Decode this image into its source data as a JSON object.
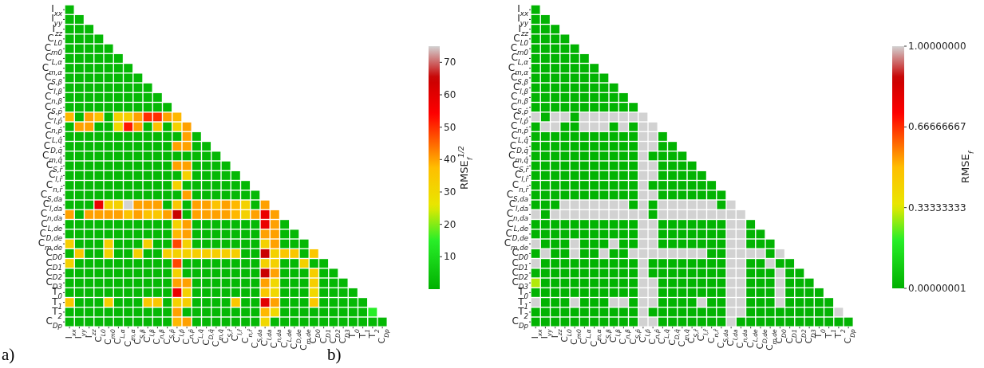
{
  "chart_data": [
    {
      "type": "heatmap",
      "clabel": "RMSE$_{f}$$^{1/2}$",
      "annotations": [
        "a)"
      ],
      "categories": [
        "I$_{xx}$",
        "I$_{yy}$",
        "I$_{zz}$",
        "C$_{L0}$",
        "C$_{m0}$",
        "C$_{L,α}$",
        "C$_{m,α}$",
        "C$_{S,β}$",
        "C$_{l,β}$",
        "C$_{n,β}$",
        "C$_{S,p̂}$",
        "C$_{l,p̂}$",
        "C$_{n,p̂}$",
        "C$_{L,q̂}$",
        "C$_{D,q̂}$",
        "C$_{m,q̂}$",
        "C$_{S,r̂}$",
        "C$_{l,r̂}$",
        "C$_{n,r̂}$",
        "C$_{S,da}$",
        "C$_{l,da}$",
        "C$_{n,da}$",
        "C$_{L,de}$",
        "C$_{D,de}$",
        "C$_{m,de}$",
        "C$_{D0}$",
        "C$_{D1}$",
        "C$_{D2}$",
        "C$_{D3}$",
        "T$_{0}$",
        "T$_{1}$",
        "T$_{2}$",
        "C$_{Dp}$"
      ],
      "y_categories": [
        "I$_{xx}$",
        "I$_{yy}$",
        "I$_{zz}$",
        "C$_{L0}$",
        "C$_{m0}$",
        "C$_{L,α}$",
        "C$_{m,α}$",
        "C$_{S,β}$",
        "C$_{l,β}$",
        "C$_{n,β}$",
        "C$_{S,p̂}$",
        "C$_{l,p̂}$",
        "C$_{n,p̂}$",
        "C$_{L,q̂}$",
        "C$_{D,q̂}$",
        "C$_{m,q̂}$",
        "C$_{S,r̂}$",
        "C$_{l,r̂}$",
        "C$_{n,r̂}$",
        "C$_{S,da}$",
        "C$_{l,da}$",
        "C$_{n,da}$",
        "C$_{L,de}$",
        "C$_{D,de}$",
        "C$_{m,de}$",
        "C$_{D0}$",
        "C$_{D1}$",
        "C$_{D2}$",
        "C$_{D3}$",
        "T$_{0}$",
        "T$_{1}$",
        "T$_{2}$",
        "C$_{Dp}$"
      ],
      "clim": [
        0,
        75
      ],
      "cticks": [
        10,
        20,
        30,
        40,
        50,
        60,
        70
      ],
      "cells": [
        [
          2,
          null,
          null,
          null,
          null,
          null,
          null,
          null,
          null,
          null,
          null,
          null,
          null,
          null,
          null,
          null,
          null,
          null,
          null,
          null,
          null,
          null,
          null,
          null,
          null,
          null,
          null,
          null,
          null,
          null,
          null,
          null,
          null
        ],
        [
          2,
          2,
          null,
          null,
          null,
          null,
          null,
          null,
          null,
          null,
          null,
          null,
          null,
          null,
          null,
          null,
          null,
          null,
          null,
          null,
          null,
          null,
          null,
          null,
          null,
          null,
          null,
          null,
          null,
          null,
          null,
          null,
          null
        ],
        [
          2,
          2,
          2,
          null,
          null,
          null,
          null,
          null,
          null,
          null,
          null,
          null,
          null,
          null,
          null,
          null,
          null,
          null,
          null,
          null,
          null,
          null,
          null,
          null,
          null,
          null,
          null,
          null,
          null,
          null,
          null,
          null,
          null
        ],
        [
          2,
          2,
          2,
          2,
          null,
          null,
          null,
          null,
          null,
          null,
          null,
          null,
          null,
          null,
          null,
          null,
          null,
          null,
          null,
          null,
          null,
          null,
          null,
          null,
          null,
          null,
          null,
          null,
          null,
          null,
          null,
          null,
          null
        ],
        [
          2,
          2,
          2,
          2,
          2,
          null,
          null,
          null,
          null,
          null,
          null,
          null,
          null,
          null,
          null,
          null,
          null,
          null,
          null,
          null,
          null,
          null,
          null,
          null,
          null,
          null,
          null,
          null,
          null,
          null,
          null,
          null,
          null
        ],
        [
          2,
          2,
          2,
          2,
          2,
          2,
          null,
          null,
          null,
          null,
          null,
          null,
          null,
          null,
          null,
          null,
          null,
          null,
          null,
          null,
          null,
          null,
          null,
          null,
          null,
          null,
          null,
          null,
          null,
          null,
          null,
          null,
          null
        ],
        [
          2,
          2,
          2,
          2,
          2,
          2,
          2,
          null,
          null,
          null,
          null,
          null,
          null,
          null,
          null,
          null,
          null,
          null,
          null,
          null,
          null,
          null,
          null,
          null,
          null,
          null,
          null,
          null,
          null,
          null,
          null,
          null,
          null
        ],
        [
          2,
          2,
          2,
          2,
          2,
          2,
          2,
          2,
          null,
          null,
          null,
          null,
          null,
          null,
          null,
          null,
          null,
          null,
          null,
          null,
          null,
          null,
          null,
          null,
          null,
          null,
          null,
          null,
          null,
          null,
          null,
          null,
          null
        ],
        [
          2,
          2,
          2,
          2,
          2,
          2,
          2,
          2,
          2,
          null,
          null,
          null,
          null,
          null,
          null,
          null,
          null,
          null,
          null,
          null,
          null,
          null,
          null,
          null,
          null,
          null,
          null,
          null,
          null,
          null,
          null,
          null,
          null
        ],
        [
          2,
          2,
          2,
          2,
          2,
          2,
          2,
          2,
          2,
          2,
          null,
          null,
          null,
          null,
          null,
          null,
          null,
          null,
          null,
          null,
          null,
          null,
          null,
          null,
          null,
          null,
          null,
          null,
          null,
          null,
          null,
          null,
          null
        ],
        [
          2,
          2,
          2,
          2,
          2,
          2,
          2,
          2,
          2,
          2,
          2,
          null,
          null,
          null,
          null,
          null,
          null,
          null,
          null,
          null,
          null,
          null,
          null,
          null,
          null,
          null,
          null,
          null,
          null,
          null,
          null,
          null,
          null
        ],
        [
          38,
          2,
          40,
          37,
          2,
          32,
          33,
          40,
          50,
          50,
          40,
          38,
          null,
          null,
          null,
          null,
          null,
          null,
          null,
          null,
          null,
          null,
          null,
          null,
          null,
          null,
          null,
          null,
          null,
          null,
          null,
          null,
          null
        ],
        [
          2,
          40,
          40,
          2,
          2,
          30,
          52,
          40,
          2,
          36,
          2,
          32,
          40,
          null,
          null,
          null,
          null,
          null,
          null,
          null,
          null,
          null,
          null,
          null,
          null,
          null,
          null,
          null,
          null,
          null,
          null,
          null,
          null
        ],
        [
          2,
          2,
          2,
          2,
          2,
          2,
          2,
          2,
          2,
          2,
          2,
          2,
          40,
          2,
          null,
          null,
          null,
          null,
          null,
          null,
          null,
          null,
          null,
          null,
          null,
          null,
          null,
          null,
          null,
          null,
          null,
          null,
          null
        ],
        [
          2,
          2,
          2,
          2,
          2,
          2,
          2,
          2,
          2,
          2,
          2,
          40,
          40,
          2,
          2,
          null,
          null,
          null,
          null,
          null,
          null,
          null,
          null,
          null,
          null,
          null,
          null,
          null,
          null,
          null,
          null,
          null,
          null
        ],
        [
          2,
          2,
          2,
          2,
          2,
          2,
          2,
          2,
          2,
          2,
          2,
          2,
          2,
          2,
          2,
          2,
          null,
          null,
          null,
          null,
          null,
          null,
          null,
          null,
          null,
          null,
          null,
          null,
          null,
          null,
          null,
          null,
          null
        ],
        [
          2,
          2,
          2,
          2,
          2,
          2,
          2,
          2,
          2,
          2,
          2,
          40,
          40,
          2,
          2,
          2,
          2,
          null,
          null,
          null,
          null,
          null,
          null,
          null,
          null,
          null,
          null,
          null,
          null,
          null,
          null,
          null,
          null
        ],
        [
          2,
          2,
          2,
          2,
          2,
          2,
          2,
          2,
          2,
          2,
          2,
          2,
          32,
          2,
          2,
          2,
          2,
          2,
          null,
          null,
          null,
          null,
          null,
          null,
          null,
          null,
          null,
          null,
          null,
          null,
          null,
          null,
          null
        ],
        [
          2,
          2,
          2,
          2,
          2,
          2,
          2,
          2,
          2,
          2,
          2,
          32,
          2,
          2,
          2,
          2,
          2,
          2,
          2,
          null,
          null,
          null,
          null,
          null,
          null,
          null,
          null,
          null,
          null,
          null,
          null,
          null,
          null
        ],
        [
          2,
          2,
          2,
          2,
          2,
          2,
          2,
          2,
          2,
          2,
          2,
          2,
          40,
          2,
          2,
          2,
          2,
          2,
          2,
          2,
          null,
          null,
          null,
          null,
          null,
          null,
          null,
          null,
          null,
          null,
          null,
          null,
          null
        ],
        [
          2,
          2,
          2,
          58,
          32,
          32,
          75,
          40,
          40,
          40,
          2,
          35,
          2,
          40,
          40,
          36,
          40,
          38,
          32,
          2,
          40,
          null,
          null,
          null,
          null,
          null,
          null,
          null,
          null,
          null,
          null,
          null,
          null
        ],
        [
          40,
          2,
          40,
          40,
          40,
          40,
          36,
          40,
          36,
          35,
          40,
          65,
          2,
          40,
          40,
          40,
          40,
          38,
          32,
          40,
          58,
          40,
          null,
          null,
          null,
          null,
          null,
          null,
          null,
          null,
          null,
          null,
          null
        ],
        [
          2,
          2,
          2,
          2,
          2,
          2,
          2,
          2,
          2,
          2,
          2,
          32,
          40,
          2,
          2,
          2,
          2,
          2,
          2,
          2,
          58,
          40,
          2,
          null,
          null,
          null,
          null,
          null,
          null,
          null,
          null,
          null,
          null
        ],
        [
          2,
          2,
          2,
          2,
          2,
          2,
          2,
          2,
          2,
          2,
          2,
          38,
          40,
          2,
          2,
          2,
          2,
          2,
          2,
          2,
          40,
          40,
          2,
          2,
          null,
          null,
          null,
          null,
          null,
          null,
          null,
          null,
          null
        ],
        [
          33,
          2,
          2,
          2,
          33,
          2,
          2,
          2,
          33,
          2,
          2,
          48,
          32,
          2,
          2,
          2,
          2,
          2,
          2,
          2,
          32,
          40,
          2,
          2,
          2,
          null,
          null,
          null,
          null,
          null,
          null,
          null,
          null
        ],
        [
          2,
          35,
          2,
          2,
          32,
          2,
          2,
          33,
          2,
          2,
          33,
          32,
          32,
          33,
          33,
          33,
          33,
          33,
          2,
          2,
          65,
          32,
          35,
          35,
          2,
          35,
          null,
          null,
          null,
          null,
          null,
          null,
          null
        ],
        [
          32,
          2,
          2,
          2,
          2,
          2,
          2,
          2,
          2,
          2,
          2,
          48,
          2,
          2,
          2,
          2,
          2,
          2,
          2,
          2,
          32,
          32,
          2,
          2,
          32,
          2,
          2,
          null,
          null,
          null,
          null,
          null,
          null
        ],
        [
          2,
          2,
          2,
          2,
          2,
          2,
          2,
          2,
          2,
          2,
          2,
          32,
          2,
          2,
          2,
          2,
          2,
          2,
          2,
          2,
          65,
          40,
          2,
          2,
          2,
          33,
          2,
          2,
          null,
          null,
          null,
          null,
          null
        ],
        [
          2,
          2,
          2,
          2,
          2,
          2,
          2,
          2,
          2,
          2,
          2,
          40,
          40,
          2,
          2,
          2,
          2,
          2,
          2,
          2,
          40,
          30,
          2,
          2,
          2,
          33,
          2,
          2,
          2,
          null,
          null,
          null,
          null
        ],
        [
          2,
          2,
          2,
          2,
          2,
          2,
          2,
          2,
          2,
          2,
          2,
          58,
          32,
          2,
          2,
          2,
          2,
          2,
          2,
          2,
          35,
          30,
          2,
          2,
          2,
          30,
          2,
          2,
          2,
          2,
          null,
          null,
          null
        ],
        [
          35,
          2,
          2,
          2,
          33,
          2,
          2,
          2,
          35,
          35,
          2,
          32,
          33,
          2,
          2,
          2,
          2,
          35,
          2,
          2,
          60,
          40,
          2,
          2,
          2,
          35,
          2,
          2,
          2,
          2,
          2,
          null,
          null
        ],
        [
          2,
          2,
          2,
          2,
          2,
          2,
          2,
          2,
          2,
          2,
          2,
          40,
          2,
          2,
          2,
          2,
          2,
          2,
          2,
          2,
          38,
          30,
          2,
          2,
          2,
          2,
          2,
          2,
          2,
          2,
          2,
          15,
          null
        ],
        [
          2,
          2,
          2,
          2,
          2,
          2,
          2,
          2,
          2,
          2,
          2,
          38,
          40,
          2,
          2,
          2,
          2,
          2,
          2,
          2,
          30,
          2,
          2,
          2,
          2,
          2,
          2,
          2,
          2,
          2,
          2,
          2,
          2
        ]
      ]
    },
    {
      "type": "heatmap",
      "clabel": "RMSE$_{f}$",
      "annotations": [
        "b)"
      ],
      "categories": [
        "I$_{xx}$",
        "I$_{yy}$",
        "I$_{zz}$",
        "C$_{L0}$",
        "C$_{m0}$",
        "C$_{L,α}$",
        "C$_{m,α}$",
        "C$_{S,β}$",
        "C$_{l,β}$",
        "C$_{n,β}$",
        "C$_{S,p̂}$",
        "C$_{l,p̂}$",
        "C$_{n,p̂}$",
        "C$_{L,q̂}$",
        "C$_{D,q̂}$",
        "C$_{m,q̂}$",
        "C$_{S,r̂}$",
        "C$_{l,r̂}$",
        "C$_{n,r̂}$",
        "C$_{S,da}$",
        "C$_{l,da}$",
        "C$_{n,da}$",
        "C$_{L,de}$",
        "C$_{D,de}$",
        "C$_{m,de}$",
        "C$_{D0}$",
        "C$_{D1}$",
        "C$_{D2}$",
        "C$_{D3}$",
        "T$_{0}$",
        "T$_{1}$",
        "T$_{2}$",
        "C$_{Dp}$"
      ],
      "y_categories": [
        "I$_{xx}$",
        "I$_{yy}$",
        "I$_{zz}$",
        "C$_{L0}$",
        "C$_{m0}$",
        "C$_{L,α}$",
        "C$_{m,α}$",
        "C$_{S,β}$",
        "C$_{l,β}$",
        "C$_{n,β}$",
        "C$_{S,p̂}$",
        "C$_{l,p̂}$",
        "C$_{n,p̂}$",
        "C$_{L,q̂}$",
        "C$_{D,q̂}$",
        "C$_{m,q̂}$",
        "C$_{S,r̂}$",
        "C$_{l,r̂}$",
        "C$_{n,r̂}$",
        "C$_{S,da}$",
        "C$_{l,da}$",
        "C$_{n,da}$",
        "C$_{L,de}$",
        "C$_{D,de}$",
        "C$_{m,de}$",
        "C$_{D0}$",
        "C$_{D1}$",
        "C$_{D2}$",
        "C$_{D3}$",
        "T$_{0}$",
        "T$_{1}$",
        "T$_{2}$",
        "C$_{Dp}$"
      ],
      "clim": [
        1e-08,
        1
      ],
      "cticks": [
        {
          "value": 1e-08,
          "label": "0.00000001"
        },
        0.33333333,
        0.66666667,
        {
          "value": 1,
          "label": "1.00000000"
        }
      ],
      "cells": [
        [
          0.01,
          null,
          null,
          null,
          null,
          null,
          null,
          null,
          null,
          null,
          null,
          null,
          null,
          null,
          null,
          null,
          null,
          null,
          null,
          null,
          null,
          null,
          null,
          null,
          null,
          null,
          null,
          null,
          null,
          null,
          null,
          null,
          null
        ],
        [
          0.01,
          0.01,
          null,
          null,
          null,
          null,
          null,
          null,
          null,
          null,
          null,
          null,
          null,
          null,
          null,
          null,
          null,
          null,
          null,
          null,
          null,
          null,
          null,
          null,
          null,
          null,
          null,
          null,
          null,
          null,
          null,
          null,
          null
        ],
        [
          0.01,
          0.01,
          0.01,
          null,
          null,
          null,
          null,
          null,
          null,
          null,
          null,
          null,
          null,
          null,
          null,
          null,
          null,
          null,
          null,
          null,
          null,
          null,
          null,
          null,
          null,
          null,
          null,
          null,
          null,
          null,
          null,
          null,
          null
        ],
        [
          0.01,
          0.01,
          0.01,
          0.01,
          null,
          null,
          null,
          null,
          null,
          null,
          null,
          null,
          null,
          null,
          null,
          null,
          null,
          null,
          null,
          null,
          null,
          null,
          null,
          null,
          null,
          null,
          null,
          null,
          null,
          null,
          null,
          null,
          null
        ],
        [
          0.01,
          0.01,
          0.01,
          0.01,
          0.01,
          null,
          null,
          null,
          null,
          null,
          null,
          null,
          null,
          null,
          null,
          null,
          null,
          null,
          null,
          null,
          null,
          null,
          null,
          null,
          null,
          null,
          null,
          null,
          null,
          null,
          null,
          null,
          null
        ],
        [
          0.01,
          0.01,
          0.01,
          0.01,
          0.01,
          0.01,
          null,
          null,
          null,
          null,
          null,
          null,
          null,
          null,
          null,
          null,
          null,
          null,
          null,
          null,
          null,
          null,
          null,
          null,
          null,
          null,
          null,
          null,
          null,
          null,
          null,
          null,
          null
        ],
        [
          0.01,
          0.01,
          0.01,
          0.01,
          0.01,
          0.01,
          0.01,
          null,
          null,
          null,
          null,
          null,
          null,
          null,
          null,
          null,
          null,
          null,
          null,
          null,
          null,
          null,
          null,
          null,
          null,
          null,
          null,
          null,
          null,
          null,
          null,
          null,
          null
        ],
        [
          0.01,
          0.01,
          0.01,
          0.01,
          0.01,
          0.01,
          0.01,
          0.01,
          null,
          null,
          null,
          null,
          null,
          null,
          null,
          null,
          null,
          null,
          null,
          null,
          null,
          null,
          null,
          null,
          null,
          null,
          null,
          null,
          null,
          null,
          null,
          null,
          null
        ],
        [
          0.01,
          0.01,
          0.01,
          0.01,
          0.01,
          0.01,
          0.01,
          0.01,
          0.01,
          null,
          null,
          null,
          null,
          null,
          null,
          null,
          null,
          null,
          null,
          null,
          null,
          null,
          null,
          null,
          null,
          null,
          null,
          null,
          null,
          null,
          null,
          null,
          null
        ],
        [
          0.01,
          0.01,
          0.01,
          0.01,
          0.01,
          0.01,
          0.01,
          0.01,
          0.01,
          0.01,
          null,
          null,
          null,
          null,
          null,
          null,
          null,
          null,
          null,
          null,
          null,
          null,
          null,
          null,
          null,
          null,
          null,
          null,
          null,
          null,
          null,
          null,
          null
        ],
        [
          0.01,
          0.01,
          0.01,
          0.01,
          0.01,
          0.01,
          0.01,
          0.01,
          0.01,
          0.01,
          0.01,
          null,
          null,
          null,
          null,
          null,
          null,
          null,
          null,
          null,
          null,
          null,
          null,
          null,
          null,
          null,
          null,
          null,
          null,
          null,
          null,
          null,
          null
        ],
        [
          1,
          0.01,
          1,
          1,
          0.01,
          1,
          1,
          1,
          1,
          1,
          1,
          1,
          null,
          null,
          null,
          null,
          null,
          null,
          null,
          null,
          null,
          null,
          null,
          null,
          null,
          null,
          null,
          null,
          null,
          null,
          null,
          null,
          null
        ],
        [
          0.01,
          1,
          1,
          0.01,
          0.01,
          1,
          1,
          1,
          0.01,
          1,
          0.01,
          1,
          1,
          null,
          null,
          null,
          null,
          null,
          null,
          null,
          null,
          null,
          null,
          null,
          null,
          null,
          null,
          null,
          null,
          null,
          null,
          null,
          null
        ],
        [
          0.01,
          0.01,
          0.01,
          0.01,
          0.01,
          0.01,
          0.01,
          0.01,
          0.01,
          0.01,
          0.01,
          1,
          1,
          0.01,
          null,
          null,
          null,
          null,
          null,
          null,
          null,
          null,
          null,
          null,
          null,
          null,
          null,
          null,
          null,
          null,
          null,
          null,
          null
        ],
        [
          0.01,
          0.01,
          0.01,
          0.01,
          0.01,
          0.01,
          0.01,
          0.01,
          0.01,
          0.01,
          0.01,
          1,
          1,
          0.01,
          0.01,
          null,
          null,
          null,
          null,
          null,
          null,
          null,
          null,
          null,
          null,
          null,
          null,
          null,
          null,
          null,
          null,
          null,
          null
        ],
        [
          0.01,
          0.01,
          0.01,
          0.01,
          0.01,
          0.01,
          0.01,
          0.01,
          0.01,
          0.01,
          0.01,
          1,
          0.01,
          0.01,
          0.01,
          0.01,
          null,
          null,
          null,
          null,
          null,
          null,
          null,
          null,
          null,
          null,
          null,
          null,
          null,
          null,
          null,
          null,
          null
        ],
        [
          0.01,
          0.01,
          0.01,
          0.01,
          0.01,
          0.01,
          0.01,
          0.01,
          0.01,
          0.01,
          0.01,
          1,
          1,
          0.01,
          0.01,
          0.01,
          0.01,
          null,
          null,
          null,
          null,
          null,
          null,
          null,
          null,
          null,
          null,
          null,
          null,
          null,
          null,
          null,
          null
        ],
        [
          0.01,
          0.01,
          0.01,
          0.01,
          0.01,
          0.01,
          0.01,
          0.01,
          0.01,
          0.01,
          0.01,
          1,
          1,
          0.01,
          0.01,
          0.01,
          0.01,
          0.01,
          null,
          null,
          null,
          null,
          null,
          null,
          null,
          null,
          null,
          null,
          null,
          null,
          null,
          null,
          null
        ],
        [
          0.01,
          0.01,
          0.01,
          0.01,
          0.01,
          0.01,
          0.01,
          0.01,
          0.01,
          0.01,
          0.01,
          1,
          0.01,
          0.01,
          0.01,
          0.01,
          0.01,
          0.01,
          0.01,
          null,
          null,
          null,
          null,
          null,
          null,
          null,
          null,
          null,
          null,
          null,
          null,
          null,
          null
        ],
        [
          0.01,
          0.01,
          0.01,
          0.01,
          0.01,
          0.01,
          0.01,
          0.01,
          0.01,
          0.01,
          0.01,
          1,
          1,
          0.01,
          0.01,
          0.01,
          0.01,
          0.01,
          0.01,
          0.01,
          null,
          null,
          null,
          null,
          null,
          null,
          null,
          null,
          null,
          null,
          null,
          null,
          null
        ],
        [
          0.01,
          0.01,
          0.01,
          1,
          1,
          1,
          1,
          1,
          1,
          1,
          0.01,
          1,
          0.01,
          1,
          1,
          1,
          1,
          1,
          1,
          0.01,
          1,
          null,
          null,
          null,
          null,
          null,
          null,
          null,
          null,
          null,
          null,
          null,
          null
        ],
        [
          1,
          0.01,
          1,
          1,
          1,
          1,
          1,
          1,
          1,
          1,
          1,
          1,
          0.01,
          1,
          1,
          1,
          1,
          1,
          1,
          1,
          1,
          1,
          null,
          null,
          null,
          null,
          null,
          null,
          null,
          null,
          null,
          null,
          null
        ],
        [
          0.01,
          0.01,
          0.01,
          0.01,
          0.01,
          0.01,
          0.01,
          0.01,
          0.01,
          0.01,
          0.01,
          1,
          1,
          0.01,
          0.01,
          0.01,
          0.01,
          0.01,
          0.01,
          0.01,
          1,
          1,
          0.01,
          null,
          null,
          null,
          null,
          null,
          null,
          null,
          null,
          null,
          null
        ],
        [
          0.01,
          0.01,
          0.01,
          0.01,
          0.01,
          0.01,
          0.01,
          0.01,
          0.01,
          0.01,
          0.01,
          1,
          1,
          0.01,
          0.01,
          0.01,
          0.01,
          0.01,
          0.01,
          0.01,
          1,
          1,
          0.01,
          0.01,
          null,
          null,
          null,
          null,
          null,
          null,
          null,
          null,
          null
        ],
        [
          1,
          0.01,
          0.01,
          0.01,
          1,
          0.01,
          0.01,
          0.01,
          1,
          0.01,
          0.01,
          1,
          1,
          0.01,
          0.01,
          0.01,
          0.01,
          0.01,
          0.01,
          0.01,
          1,
          1,
          0.01,
          0.01,
          0.01,
          null,
          null,
          null,
          null,
          null,
          null,
          null,
          null
        ],
        [
          0.01,
          1,
          0.01,
          0.01,
          1,
          0.01,
          0.01,
          1,
          0.01,
          0.01,
          1,
          1,
          1,
          1,
          1,
          1,
          1,
          1,
          0.01,
          0.01,
          1,
          1,
          1,
          1,
          0.01,
          1,
          null,
          null,
          null,
          null,
          null,
          null,
          null
        ],
        [
          1,
          0.01,
          0.01,
          0.01,
          0.01,
          0.01,
          0.01,
          0.01,
          0.01,
          0.01,
          0.01,
          1,
          0.01,
          0.01,
          0.01,
          0.01,
          0.01,
          0.01,
          0.01,
          0.01,
          1,
          1,
          0.01,
          0.01,
          1,
          0.01,
          0.01,
          null,
          null,
          null,
          null,
          null,
          null
        ],
        [
          0.01,
          0.01,
          0.01,
          0.01,
          0.01,
          0.01,
          0.01,
          0.01,
          0.01,
          0.01,
          0.01,
          1,
          0.01,
          0.01,
          0.01,
          0.01,
          0.01,
          0.01,
          0.01,
          0.01,
          1,
          1,
          0.01,
          0.01,
          0.01,
          1,
          0.01,
          0.01,
          null,
          null,
          null,
          null,
          null
        ],
        [
          0.3,
          0.01,
          0.01,
          0.01,
          0.01,
          0.01,
          0.01,
          0.01,
          0.01,
          0.01,
          0.01,
          1,
          1,
          0.01,
          0.01,
          0.01,
          0.01,
          0.01,
          0.01,
          0.01,
          1,
          1,
          0.01,
          0.01,
          0.01,
          1,
          0.01,
          0.01,
          0.01,
          null,
          null,
          null,
          null
        ],
        [
          0.01,
          0.01,
          0.01,
          0.01,
          0.01,
          0.01,
          0.01,
          0.01,
          0.01,
          0.01,
          0.01,
          1,
          1,
          0.01,
          0.01,
          0.01,
          0.01,
          0.01,
          0.01,
          0.01,
          1,
          1,
          0.01,
          0.01,
          0.01,
          1,
          0.01,
          0.01,
          0.01,
          0.01,
          null,
          null,
          null
        ],
        [
          1,
          0.01,
          0.01,
          0.01,
          1,
          0.01,
          0.01,
          0.01,
          1,
          1,
          0.01,
          1,
          1,
          0.01,
          0.01,
          0.01,
          0.01,
          1,
          0.01,
          0.01,
          1,
          1,
          0.01,
          0.01,
          0.01,
          1,
          0.01,
          0.01,
          0.01,
          0.01,
          0.01,
          null,
          null
        ],
        [
          0.01,
          0.01,
          0.01,
          0.01,
          0.01,
          0.01,
          0.01,
          0.01,
          0.01,
          0.01,
          0.01,
          1,
          0.01,
          0.01,
          0.01,
          0.01,
          0.01,
          0.01,
          0.01,
          0.01,
          1,
          1,
          0.01,
          0.01,
          0.01,
          0.01,
          0.01,
          0.01,
          0.01,
          0.01,
          0.01,
          1,
          null
        ],
        [
          0.01,
          0.01,
          0.01,
          0.01,
          0.01,
          0.01,
          0.01,
          0.01,
          0.01,
          0.01,
          0.01,
          1,
          1,
          0.01,
          0.01,
          0.01,
          0.01,
          0.01,
          0.01,
          0.01,
          1,
          0.01,
          0.01,
          0.01,
          0.01,
          0.01,
          0.01,
          0.01,
          0.01,
          0.01,
          0.01,
          0.01,
          0.01
        ]
      ]
    }
  ]
}
